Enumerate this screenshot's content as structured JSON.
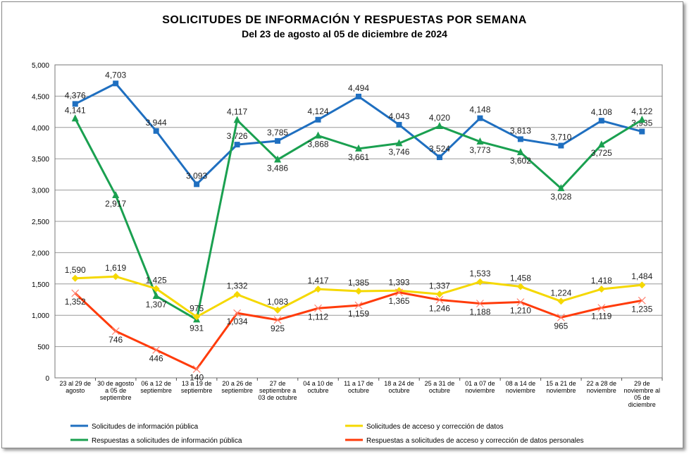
{
  "chart_data": {
    "type": "line",
    "title": "SOLICITUDES  DE INFORMACIÓN Y RESPUESTAS POR SEMANA",
    "subtitle": "Del  23 de agosto al  05 de diciembre de 2024",
    "xlabel": "",
    "ylabel": "",
    "ylim": [
      0,
      5000
    ],
    "yticks": [
      "0",
      "500",
      "1,000",
      "1,500",
      "2,000",
      "2,500",
      "3,000",
      "3,500",
      "4,000",
      "4,500",
      "5,000"
    ],
    "grid": true,
    "legend_position": "bottom",
    "categories": [
      [
        "23 al 29 de",
        "agosto"
      ],
      [
        "30 de agosto",
        "a 05 de",
        "septiembre"
      ],
      [
        "06 a 12 de",
        "septiembre"
      ],
      [
        "13 a 19 de",
        "septiembre"
      ],
      [
        "20 a 26 de",
        "septiembre"
      ],
      [
        "27 de",
        "septiembre a",
        "03 de octubre"
      ],
      [
        "04 a 10 de",
        "octubre"
      ],
      [
        "11 a 17 de",
        "octubre"
      ],
      [
        "18 a 24 de",
        "octubre"
      ],
      [
        "25 a 31 de",
        "octubre"
      ],
      [
        "01 a 07 de",
        "noviembre"
      ],
      [
        "08 a 14 de",
        "noviembre"
      ],
      [
        "15 a 21 de",
        "noviembre"
      ],
      [
        "22 a 28 de",
        "noviembre"
      ],
      [
        "29 de",
        "noviembre al",
        "05 de",
        "diciembre"
      ]
    ],
    "series": [
      {
        "name": "Solicitudes de información pública",
        "color": "#1f6fc0",
        "marker": "square",
        "values": [
          4376,
          4703,
          3944,
          3093,
          3726,
          3785,
          4124,
          4494,
          4043,
          3524,
          4148,
          3813,
          3710,
          4108,
          3935
        ]
      },
      {
        "name": "Respuestas a solicitudes de información pública",
        "color": "#1aa050",
        "marker": "triangle",
        "values": [
          4141,
          2917,
          1307,
          931,
          4117,
          3486,
          3868,
          3661,
          3746,
          4020,
          3773,
          3602,
          3028,
          3725,
          4122
        ]
      },
      {
        "name": "Solicitudes de acceso y corrección de datos",
        "color": "#f5d800",
        "marker": "diamond",
        "values": [
          1590,
          1619,
          1425,
          975,
          1332,
          1083,
          1417,
          1385,
          1393,
          1337,
          1533,
          1458,
          1224,
          1418,
          1484
        ]
      },
      {
        "name": "Respuestas a solicitudes de acceso y corrección de datos personales",
        "color": "#ff3b0a",
        "marker": "x",
        "values": [
          1352,
          746,
          446,
          140,
          1034,
          925,
          1112,
          1159,
          1365,
          1246,
          1188,
          1210,
          965,
          1119,
          1235
        ]
      }
    ]
  }
}
